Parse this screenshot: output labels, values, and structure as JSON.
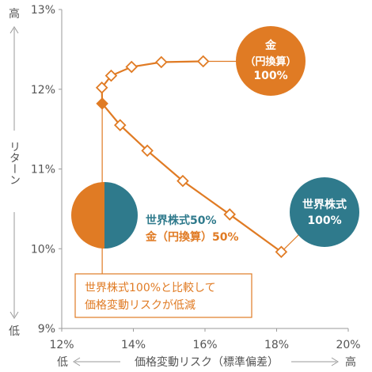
{
  "chart_data": {
    "type": "line",
    "x_unit": "%",
    "y_unit": "%",
    "xlim": [
      12,
      20
    ],
    "ylim": [
      9,
      13
    ],
    "x_ticks": [
      "12%",
      "14%",
      "16%",
      "18%",
      "20%"
    ],
    "y_ticks": [
      "9%",
      "10%",
      "11%",
      "12%",
      "13%"
    ],
    "grid": false,
    "xlabel": "価格変動リスク（標準偏差）",
    "xlabel_low": "低",
    "xlabel_high": "高",
    "ylabel": "リターン",
    "ylabel_low": "低",
    "ylabel_high": "高",
    "colors": {
      "line": "#e07b24",
      "gold_circle": "#e07b24",
      "stock_circle": "#2f7a8c",
      "axis": "#9a9a9a",
      "text": "#555555",
      "callout_border": "#e07b24"
    },
    "series": [
      {
        "points": [
          {
            "x": 18.13,
            "y": 9.96
          },
          {
            "x": 16.69,
            "y": 10.43
          },
          {
            "x": 15.38,
            "y": 10.85
          },
          {
            "x": 14.39,
            "y": 11.23
          },
          {
            "x": 13.63,
            "y": 11.55
          },
          {
            "x": 13.13,
            "y": 11.82
          },
          {
            "x": 13.12,
            "y": 12.02
          },
          {
            "x": 13.38,
            "y": 12.17
          },
          {
            "x": 13.95,
            "y": 12.28
          },
          {
            "x": 14.78,
            "y": 12.34
          },
          {
            "x": 15.95,
            "y": 12.35
          }
        ],
        "highlight_index": 5
      }
    ],
    "labels": {
      "gold": [
        "金",
        "（円換算）",
        "100%"
      ],
      "stock": [
        "世界株式",
        "100%"
      ],
      "mix_stock": "世界株式50%",
      "mix_gold": "金（円換算）50%",
      "callout": [
        "世界株式100%と比較して",
        "価格変動リスクが低減"
      ]
    }
  }
}
